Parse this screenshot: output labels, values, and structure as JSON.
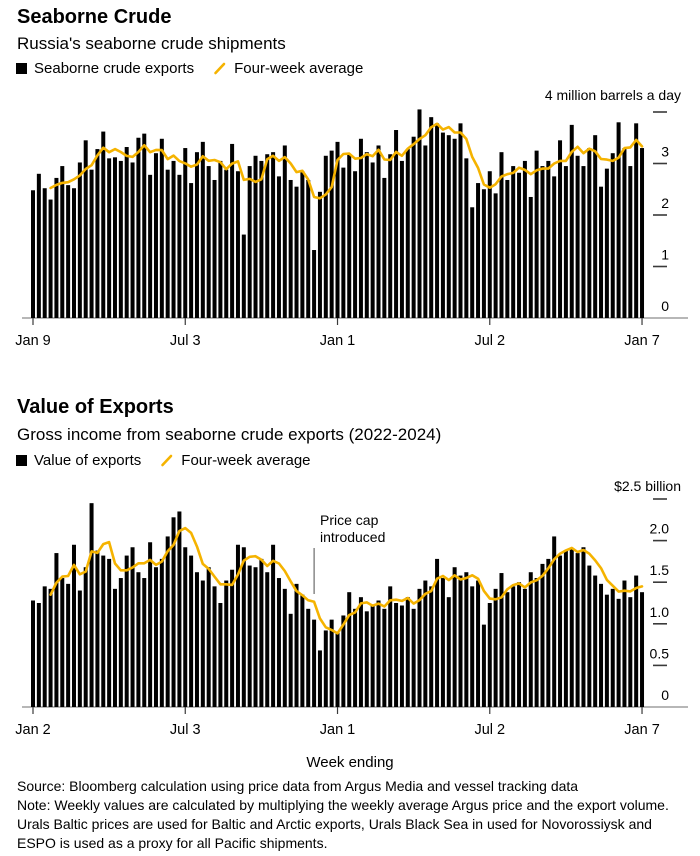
{
  "colors": {
    "bar": "#000000",
    "average_line": "#f5b300",
    "baseline": "#8c8c8c",
    "tick": "#3a3a3a",
    "annotation_line": "#4d4d4d",
    "text": "#000000"
  },
  "chart_data": [
    {
      "type": "bar",
      "title": "Seaborne Crude",
      "subtitle": "Russia's seaborne crude shipments",
      "legend": {
        "bar_label": "Seaborne crude exports",
        "line_label": "Four-week average"
      },
      "axis_unit_label": "4 million barrels a day",
      "ylim": [
        0,
        4
      ],
      "average_window": 4,
      "y_ticks": [
        {
          "value": 4,
          "label": ""
        },
        {
          "value": 3,
          "label": "3"
        },
        {
          "value": 2,
          "label": "2"
        },
        {
          "value": 1,
          "label": "1"
        },
        {
          "value": 0,
          "label": "0"
        }
      ],
      "x_tick_labels": [
        "Jan 9",
        "Jul 3",
        "Jan 1",
        "Jul 2",
        "Jan 7"
      ],
      "x_tick_indices": [
        0,
        26,
        52,
        78,
        104
      ],
      "values": [
        2.48,
        2.8,
        2.52,
        2.3,
        2.72,
        2.95,
        2.58,
        2.52,
        3.02,
        3.45,
        2.88,
        3.28,
        3.62,
        3.1,
        3.12,
        3.05,
        3.32,
        3.02,
        3.5,
        3.58,
        2.78,
        3.2,
        3.48,
        2.88,
        3.05,
        2.78,
        3.3,
        2.62,
        3.22,
        3.42,
        2.95,
        2.68,
        3.05,
        2.88,
        3.38,
        2.85,
        1.62,
        2.95,
        3.15,
        3.05,
        3.18,
        3.22,
        2.75,
        3.35,
        2.68,
        2.55,
        2.85,
        2.68,
        1.32,
        2.45,
        3.15,
        3.25,
        3.42,
        2.92,
        3.18,
        2.85,
        3.48,
        3.22,
        3.02,
        3.35,
        2.72,
        3.18,
        3.65,
        3.05,
        3.28,
        3.52,
        4.05,
        3.35,
        3.9,
        3.78,
        3.6,
        3.55,
        3.48,
        3.78,
        3.1,
        2.15,
        2.62,
        2.5,
        2.85,
        2.42,
        3.22,
        2.68,
        2.95,
        2.82,
        3.05,
        2.35,
        3.25,
        2.95,
        3.05,
        2.75,
        3.45,
        2.95,
        3.75,
        3.15,
        2.95,
        3.3,
        3.55,
        2.55,
        2.9,
        3.2,
        3.8,
        3.3,
        2.95,
        3.78,
        3.3
      ]
    },
    {
      "type": "bar",
      "title": "Value of Exports",
      "subtitle": "Gross income from seaborne crude exports (2022-2024)",
      "legend": {
        "bar_label": "Value of exports",
        "line_label": "Four-week average"
      },
      "axis_unit_label": "$2.5 billion",
      "xlabel": "Week ending",
      "ylim": [
        0,
        2.5
      ],
      "average_window": 4,
      "y_ticks": [
        {
          "value": 2.5,
          "label": ""
        },
        {
          "value": 2.0,
          "label": "2.0"
        },
        {
          "value": 1.5,
          "label": "1.5"
        },
        {
          "value": 1.0,
          "label": "1.0"
        },
        {
          "value": 0.5,
          "label": "0.5"
        },
        {
          "value": 0,
          "label": "0"
        }
      ],
      "x_tick_labels": [
        "Jan 2",
        "Jul 3",
        "Jan 1",
        "Jul 2",
        "Jan 7"
      ],
      "x_tick_indices": [
        0,
        26,
        52,
        78,
        104
      ],
      "annotation": {
        "lines": [
          "Price cap",
          "introduced"
        ],
        "week_index": 48
      },
      "values": [
        1.28,
        1.25,
        1.45,
        1.42,
        1.85,
        1.55,
        1.48,
        1.95,
        1.4,
        1.68,
        2.45,
        1.88,
        1.82,
        1.78,
        1.42,
        1.55,
        1.82,
        1.92,
        1.62,
        1.55,
        1.98,
        1.68,
        1.78,
        2.05,
        2.28,
        2.35,
        1.92,
        1.82,
        1.62,
        1.52,
        1.68,
        1.45,
        1.25,
        1.52,
        1.65,
        1.95,
        1.92,
        1.7,
        1.68,
        1.78,
        1.62,
        1.95,
        1.55,
        1.42,
        1.12,
        1.48,
        1.35,
        1.18,
        1.05,
        0.68,
        0.92,
        1.05,
        0.89,
        1.1,
        1.38,
        1.18,
        1.32,
        1.15,
        1.22,
        1.28,
        1.18,
        1.45,
        1.25,
        1.22,
        1.32,
        1.18,
        1.42,
        1.52,
        1.45,
        1.78,
        1.55,
        1.32,
        1.68,
        1.58,
        1.62,
        1.45,
        1.52,
        0.99,
        1.25,
        1.42,
        1.61,
        1.38,
        1.45,
        1.5,
        1.42,
        1.62,
        1.55,
        1.72,
        1.78,
        2.05,
        1.82,
        1.88,
        1.9,
        1.85,
        1.92,
        1.7,
        1.58,
        1.48,
        1.35,
        1.42,
        1.3,
        1.52,
        1.32,
        1.58,
        1.38
      ]
    }
  ],
  "footer": {
    "lines": [
      "Source: Bloomberg calculation using price data from Argus Media and vessel tracking data",
      "Note: Weekly values are calculated by multiplying the weekly average Argus price and the export volume.",
      "Urals Baltic prices are used for Baltic and Arctic exports, Urals Black Sea in used for Novorossiysk and",
      "ESPO is used as a proxy for all Pacific shipments."
    ]
  }
}
